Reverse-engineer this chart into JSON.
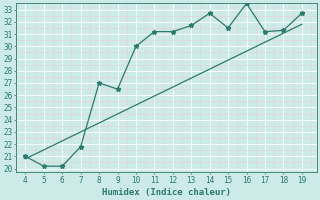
{
  "title": "",
  "xlabel": "Humidex (Indice chaleur)",
  "x_values": [
    4,
    5,
    6,
    7,
    8,
    9,
    10,
    11,
    12,
    13,
    14,
    15,
    16,
    17,
    18,
    19
  ],
  "y_curve": [
    21.0,
    20.2,
    20.2,
    21.8,
    27.0,
    26.5,
    30.0,
    31.2,
    31.2,
    31.7,
    32.7,
    31.5,
    33.5,
    31.2,
    31.3,
    32.7
  ],
  "y_line_x": [
    4,
    19
  ],
  "y_line_y": [
    20.8,
    31.8
  ],
  "ylim_min": 19.7,
  "ylim_max": 33.5,
  "xlim_min": 3.5,
  "xlim_max": 19.8,
  "yticks": [
    20,
    21,
    22,
    23,
    24,
    25,
    26,
    27,
    28,
    29,
    30,
    31,
    32,
    33
  ],
  "xticks": [
    4,
    5,
    6,
    7,
    8,
    9,
    10,
    11,
    12,
    13,
    14,
    15,
    16,
    17,
    18,
    19
  ],
  "bg_color": "#cceae8",
  "plot_bg_color": "#cceae8",
  "grid_main_color": "#ffffff",
  "grid_minor_color": "#ddf0ee",
  "line_color": "#2d7a6e",
  "font_color": "#2d7a6e",
  "marker": "*",
  "linewidth": 0.9,
  "markersize": 3.5,
  "fontsize_label": 6.5,
  "fontsize_tick": 5.5
}
